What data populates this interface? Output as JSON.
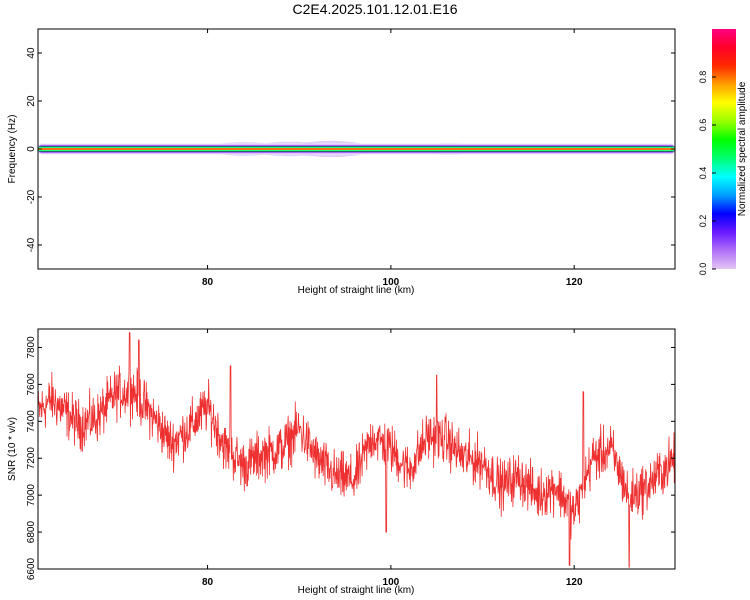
{
  "figure": {
    "title": "C2E4.2025.101.12.01.E16"
  },
  "chart_data": [
    {
      "type": "heatmap",
      "title": "C2E4.2025.101.12.01.E16",
      "xlabel": "Height of straight line (km)",
      "ylabel": "Frequency (Hz)",
      "xlim": [
        61.5,
        131
      ],
      "ylim": [
        -50,
        50
      ],
      "xticks": [
        80,
        100,
        120
      ],
      "yticks": [
        40,
        20,
        0,
        -20,
        -40
      ],
      "grid": false,
      "band_frequency_hz": 0,
      "colorbar": {
        "label": "Normalized spectral amplitude",
        "range": [
          0,
          1
        ],
        "ticks": [
          0.0,
          0.2,
          0.4,
          0.6,
          0.8
        ],
        "tick_labels": [
          "0.0",
          "0.2",
          "0.4",
          "0.6",
          "0.8"
        ]
      },
      "color_stops": [
        "#e4c4f4",
        "#b070f8",
        "#6a18ff",
        "#0000ff",
        "#00a0ff",
        "#00ffff",
        "#00ff70",
        "#00ff00",
        "#9aff00",
        "#ffff00",
        "#ffa000",
        "#ff2a00",
        "#ff0028",
        "#ff0080"
      ]
    },
    {
      "type": "line",
      "xlabel": "Height of straight line (km)",
      "ylabel": "SNR (10 * v/v)",
      "xlim": [
        61.5,
        131
      ],
      "ylim": [
        6600,
        7900
      ],
      "xticks": [
        80,
        100,
        120
      ],
      "yticks": [
        7800,
        7600,
        7400,
        7200,
        7000,
        6800,
        6600
      ],
      "grid": false,
      "series": [
        {
          "color": "#ee3030",
          "x_step": 1,
          "trend": {
            "x": [
              61.5,
              63,
              66,
              68,
              70,
              72,
              74,
              76,
              78,
              80,
              82,
              84,
              86,
              88,
              90,
              92,
              94,
              96,
              98,
              100,
              102,
              104,
              106,
              108,
              110,
              112,
              114,
              116,
              118,
              120,
              122,
              124,
              126,
              128,
              130,
              131
            ],
            "values": [
              7450,
              7520,
              7380,
              7420,
              7550,
              7560,
              7430,
              7280,
              7360,
              7480,
              7250,
              7160,
              7220,
              7250,
              7360,
              7190,
              7100,
              7080,
              7320,
              7250,
              7130,
              7320,
              7300,
              7200,
              7180,
              7050,
              7100,
              7000,
              7050,
              6900,
              7200,
              7250,
              6990,
              7050,
              7150,
              7200
            ]
          },
          "noise_amplitude": 110,
          "spike_values": [
            {
              "x": 71.5,
              "value": 7880
            },
            {
              "x": 72.5,
              "value": 7840
            },
            {
              "x": 82.5,
              "value": 7700
            },
            {
              "x": 99.5,
              "value": 6800
            },
            {
              "x": 105,
              "value": 7650
            },
            {
              "x": 119.5,
              "value": 6620
            },
            {
              "x": 121,
              "value": 7560
            },
            {
              "x": 126,
              "value": 6610
            }
          ]
        }
      ]
    }
  ]
}
